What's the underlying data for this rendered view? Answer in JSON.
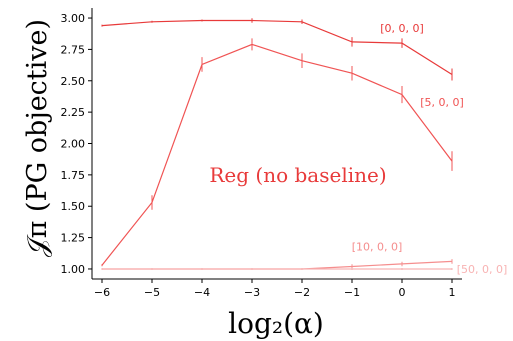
{
  "chart_data": {
    "type": "line",
    "title": "",
    "xlabel": "log₂(α)",
    "ylabel": "𝒥π (PG objective)",
    "annotation": "Reg (no baseline)",
    "x": [
      -6,
      -5,
      -4,
      -3,
      -2,
      -1,
      0,
      1
    ],
    "xticks": [
      "−6",
      "−5",
      "−4",
      "−3",
      "−2",
      "−1",
      "0",
      "1"
    ],
    "yticks": [
      "1.00",
      "1.25",
      "1.50",
      "1.75",
      "2.00",
      "2.25",
      "2.50",
      "2.75",
      "3.00"
    ],
    "xlim": [
      -6.2,
      1.2
    ],
    "ylim": [
      0.92,
      3.08
    ],
    "grid": false,
    "legend": "none (series labeled inline at right end)",
    "series": [
      {
        "name": "[0, 0, 0]",
        "color": "#e83a3a",
        "values": [
          2.94,
          2.97,
          2.98,
          2.98,
          2.97,
          2.81,
          2.8,
          2.55
        ],
        "errors": [
          0.0,
          0.0,
          0.0,
          0.01,
          0.01,
          0.03,
          0.03,
          0.04
        ]
      },
      {
        "name": "[5, 0, 0]",
        "color": "#f05454",
        "values": [
          1.03,
          1.53,
          2.63,
          2.79,
          2.66,
          2.56,
          2.39,
          1.86
        ],
        "errors": [
          0.0,
          0.05,
          0.05,
          0.04,
          0.05,
          0.05,
          0.06,
          0.07
        ]
      },
      {
        "name": "[10, 0, 0]",
        "color": "#f58e8e",
        "values": [
          1.0,
          1.0,
          1.0,
          1.0,
          1.0,
          1.02,
          1.04,
          1.06
        ],
        "errors": [
          0.0,
          0.0,
          0.0,
          0.0,
          0.0,
          0.01,
          0.01,
          0.01
        ]
      },
      {
        "name": "[50, 0, 0]",
        "color": "#f8b3b3",
        "values": [
          1.0,
          1.0,
          1.0,
          1.0,
          1.0,
          1.0,
          1.0,
          1.0
        ],
        "errors": [
          0.0,
          0.0,
          0.0,
          0.0,
          0.0,
          0.0,
          0.0,
          0.0
        ]
      }
    ],
    "label_anchor": [
      {
        "x": 0,
        "y": 2.92
      },
      {
        "x": 0.8,
        "y": 2.33
      },
      {
        "x": -0.5,
        "y": 1.18
      },
      {
        "x": 1.6,
        "y": 1.0
      }
    ]
  }
}
